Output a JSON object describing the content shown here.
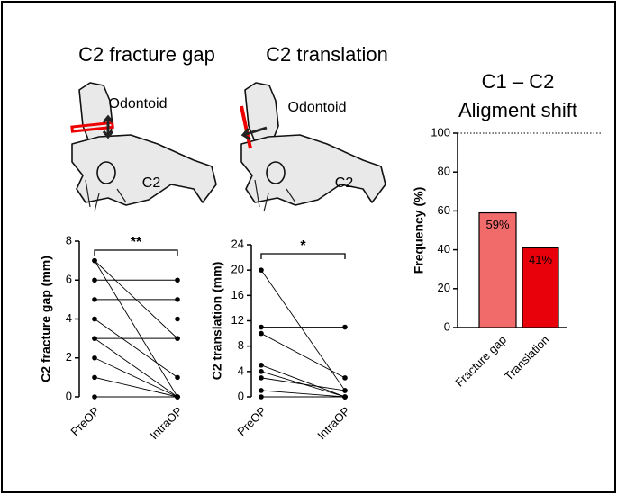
{
  "chart_data": [
    {
      "type": "paired",
      "title": "C2 fracture gap",
      "illustration_labels": [
        "Odontoid",
        "C2"
      ],
      "y_label": "C2 fracture gap (mm)",
      "categories": [
        "PreOP",
        "IntraOP"
      ],
      "values": [
        [
          7,
          3
        ],
        [
          7,
          0
        ],
        [
          6,
          6
        ],
        [
          5,
          5
        ],
        [
          4,
          4
        ],
        [
          4,
          1
        ],
        [
          3,
          3
        ],
        [
          3,
          0
        ],
        [
          2,
          0
        ],
        [
          1,
          0
        ],
        [
          0,
          0
        ]
      ],
      "color": "#000000",
      "annotation": "**",
      "ylim": [
        0,
        8
      ],
      "yticks": [
        0,
        2,
        4,
        6,
        8
      ]
    },
    {
      "type": "paired",
      "title": "C2 translation",
      "illustration_labels": [
        "Odontoid",
        "C2"
      ],
      "y_label": "C2 translation (mm)",
      "categories": [
        "PreOP",
        "IntraOP"
      ],
      "values": [
        [
          20,
          1
        ],
        [
          11,
          11
        ],
        [
          10,
          3
        ],
        [
          5,
          0
        ],
        [
          4,
          0
        ],
        [
          3,
          1
        ],
        [
          1,
          0
        ],
        [
          0,
          0
        ]
      ],
      "color": "#000000",
      "annotation": "*",
      "ylim": [
        0,
        24
      ],
      "yticks": [
        0,
        4,
        8,
        12,
        16,
        20,
        24
      ]
    },
    {
      "type": "bar",
      "title": [
        "C1 – C2",
        "Aligment shift"
      ],
      "y_label": "Frequency (%)",
      "categories": [
        "Fracture gap",
        "Translation"
      ],
      "values": [
        59,
        41
      ],
      "value_labels": [
        "59%",
        "41%"
      ],
      "colors": [
        "#f26b6b",
        "#e8000b"
      ],
      "ylim": [
        0,
        100
      ],
      "yticks": [
        0,
        20,
        40,
        60,
        80,
        100
      ]
    }
  ]
}
